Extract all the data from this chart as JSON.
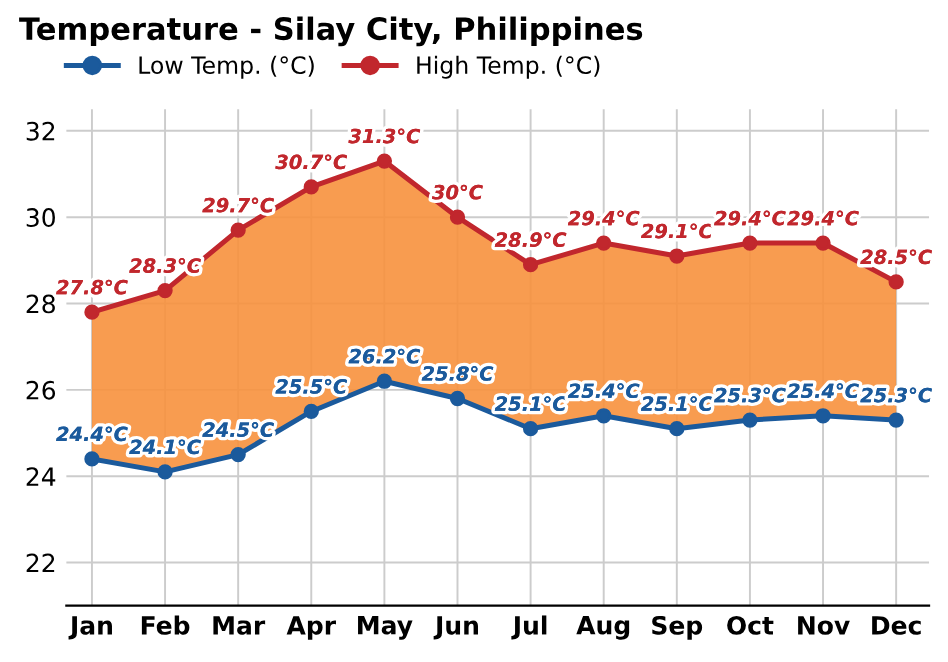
{
  "chart_data": {
    "type": "line",
    "title": "Temperature - Silay City, Philippines",
    "categories": [
      "Jan",
      "Feb",
      "Mar",
      "Apr",
      "May",
      "Jun",
      "Jul",
      "Aug",
      "Sep",
      "Oct",
      "Nov",
      "Dec"
    ],
    "series": [
      {
        "name": "Low Temp. (°C)",
        "color": "#1b5a9c",
        "values": [
          24.4,
          24.1,
          24.5,
          25.5,
          26.2,
          25.8,
          25.1,
          25.4,
          25.1,
          25.3,
          25.4,
          25.3
        ],
        "value_labels": [
          "24.4°C",
          "24.1°C",
          "24.5°C",
          "25.5°C",
          "26.2°C",
          "25.8°C",
          "25.1°C",
          "25.4°C",
          "25.1°C",
          "25.3°C",
          "25.4°C",
          "25.3°C"
        ]
      },
      {
        "name": "High Temp. (°C)",
        "color": "#c1272d",
        "values": [
          27.8,
          28.3,
          29.7,
          30.7,
          31.3,
          30,
          28.9,
          29.4,
          29.1,
          29.4,
          29.4,
          28.5
        ],
        "value_labels": [
          "27.8°C",
          "28.3°C",
          "29.7°C",
          "30.7°C",
          "31.3°C",
          "30°C",
          "28.9°C",
          "29.4°C",
          "29.1°C",
          "29.4°C",
          "29.4°C",
          "28.5°C"
        ],
        "lower": [
          24.4,
          24.1,
          24.5,
          25.5,
          26.2,
          25.8,
          25.1,
          25.4,
          25.1,
          25.3,
          25.4,
          25.3
        ],
        "upper": [
          27.8,
          28.3,
          29.7,
          30.7,
          31.3,
          30,
          28.9,
          29.4,
          29.1,
          29.4,
          29.4,
          28.5
        ]
      }
    ],
    "ylim": [
      21,
      32.5
    ],
    "yticks": [
      22,
      24,
      26,
      28,
      30,
      32
    ],
    "grid": true,
    "legend": "top left",
    "marker": "circle",
    "line_style": "solid"
  }
}
